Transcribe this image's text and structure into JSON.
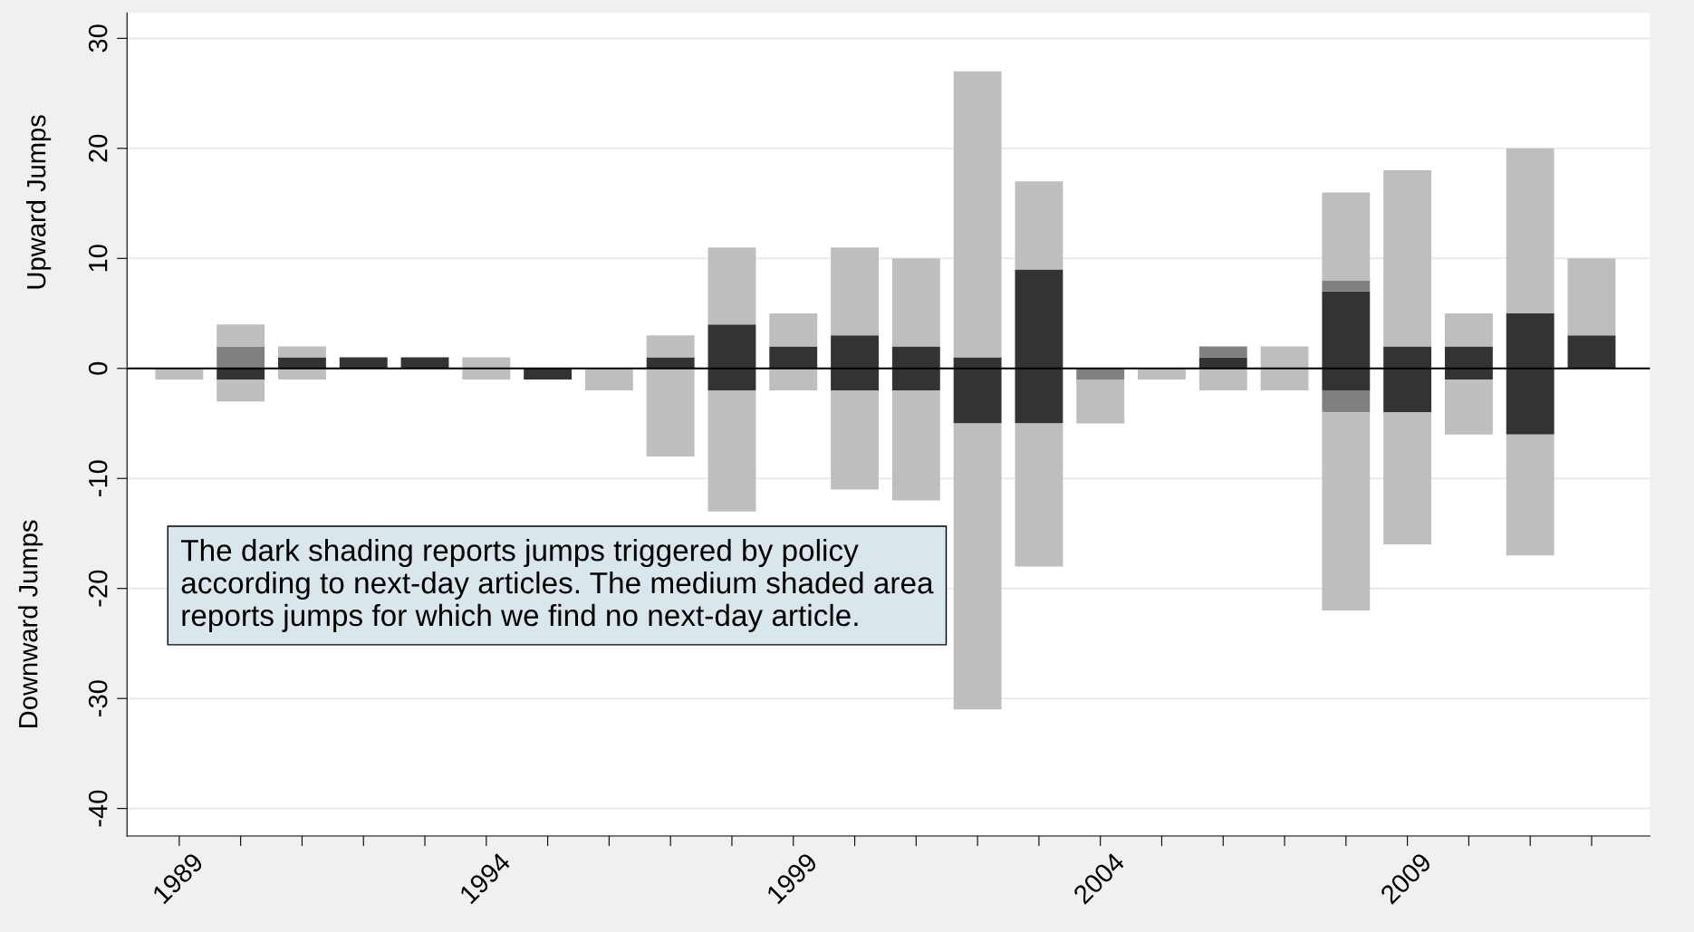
{
  "chart_data": {
    "type": "bar",
    "stacked": true,
    "ylabel": "Upward Jumps",
    "x": [
      1989,
      1990,
      1991,
      1992,
      1993,
      1994,
      1995,
      1996,
      1997,
      1998,
      1999,
      2000,
      2001,
      2002,
      2003,
      2004,
      2005,
      2006,
      2007,
      2008,
      2009,
      2010,
      2011,
      2012
    ],
    "series": [
      {
        "color": "#333333",
        "values": [
          0,
          0,
          1,
          1,
          1,
          0,
          0,
          0,
          1,
          4,
          2,
          3,
          2,
          1,
          9,
          0,
          0,
          1,
          0,
          7,
          2,
          2,
          5,
          3
        ]
      },
      {
        "color": "#808080",
        "values": [
          0,
          2,
          0,
          0,
          0,
          0,
          0,
          0,
          0,
          0,
          0,
          0,
          0,
          0,
          0,
          0,
          0,
          1,
          0,
          1,
          0,
          0,
          0,
          0
        ]
      },
      {
        "color": "#bebebe",
        "values": [
          0,
          2,
          1,
          0,
          0,
          1,
          0,
          0,
          2,
          7,
          3,
          8,
          8,
          26,
          8,
          0,
          0,
          0,
          2,
          8,
          16,
          3,
          15,
          7
        ]
      },
      {
        "color": "#333333",
        "values": [
          0,
          -1,
          0,
          0,
          0,
          0,
          -1,
          0,
          0,
          -2,
          0,
          -2,
          -2,
          -5,
          -5,
          0,
          0,
          0,
          0,
          -2,
          -4,
          -1,
          -6,
          0
        ]
      },
      {
        "color": "#808080",
        "values": [
          0,
          0,
          0,
          0,
          0,
          0,
          0,
          0,
          0,
          0,
          0,
          0,
          0,
          0,
          0,
          -1,
          0,
          0,
          0,
          -2,
          0,
          0,
          0,
          0
        ]
      },
      {
        "color": "#bebebe",
        "values": [
          -1,
          -2,
          -1,
          0,
          0,
          -1,
          0,
          -2,
          -8,
          -11,
          -2,
          -9,
          -10,
          -26,
          -13,
          -4,
          -1,
          -2,
          -2,
          -18,
          -12,
          -5,
          -11,
          0
        ]
      }
    ],
    "xlim": [
      1988.15,
      2012.95
    ],
    "ylim": [
      -42.5,
      32.3
    ],
    "xticks": [
      1989,
      {
        "value": 1990,
        "label": null
      },
      {
        "value": 1991,
        "label": null
      },
      {
        "value": 1992,
        "label": null
      },
      {
        "value": 1993,
        "label": null
      },
      1994,
      {
        "value": 1995,
        "label": null
      },
      {
        "value": 1996,
        "label": null
      },
      {
        "value": 1997,
        "label": null
      },
      {
        "value": 1998,
        "label": null
      },
      1999,
      {
        "value": 2000,
        "label": null
      },
      {
        "value": 2001,
        "label": null
      },
      {
        "value": 2002,
        "label": null
      },
      {
        "value": 2003,
        "label": null
      },
      2004,
      {
        "value": 2005,
        "label": null
      },
      {
        "value": 2006,
        "label": null
      },
      {
        "value": 2007,
        "label": null
      },
      {
        "value": 2008,
        "label": null
      },
      2009,
      {
        "value": 2010,
        "label": null
      },
      {
        "value": 2011,
        "label": null
      },
      {
        "value": 2012,
        "label": null
      }
    ],
    "yticks": [
      -40,
      -30,
      -20,
      -10,
      0,
      10,
      20,
      30
    ],
    "ref_lines": [
      {
        "axis": "y",
        "value": 0,
        "color": "#000000"
      }
    ],
    "grid": "y",
    "legend": false,
    "annotations": [
      "Downward Jumps",
      "The dark shading reports jumps triggered by policy according to next-day articles. The medium shaded area reports jumps for which we find no next-day article."
    ]
  }
}
